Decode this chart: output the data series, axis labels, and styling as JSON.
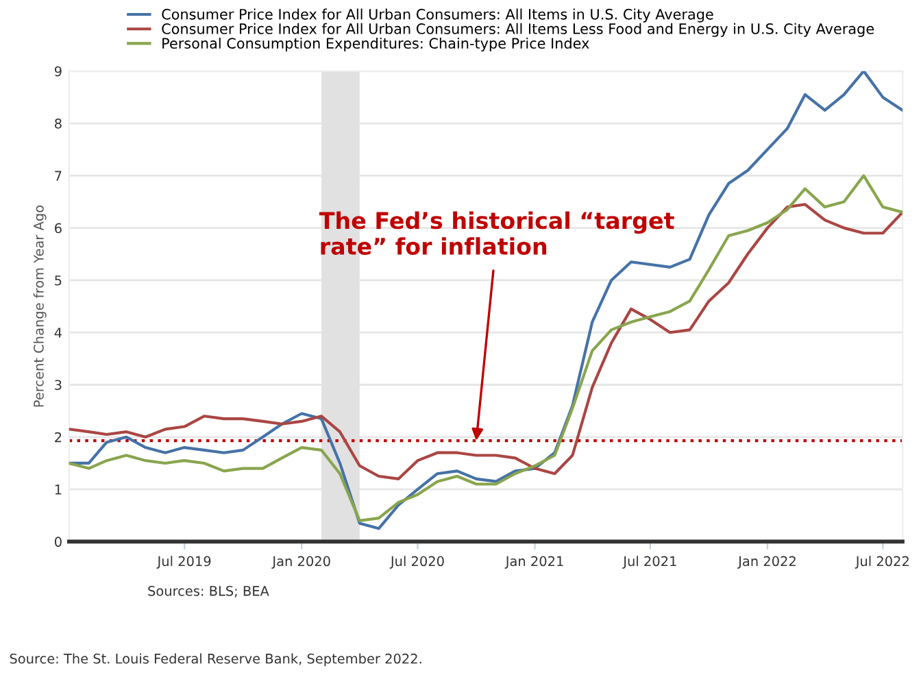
{
  "chart_data": {
    "type": "line",
    "ylabel": "Percent Change from Year Ago",
    "x": [
      "2019-01",
      "2019-02",
      "2019-03",
      "2019-04",
      "2019-05",
      "2019-06",
      "2019-07",
      "2019-08",
      "2019-09",
      "2019-10",
      "2019-11",
      "2019-12",
      "2020-01",
      "2020-02",
      "2020-03",
      "2020-04",
      "2020-05",
      "2020-06",
      "2020-07",
      "2020-08",
      "2020-09",
      "2020-10",
      "2020-11",
      "2020-12",
      "2021-01",
      "2021-02",
      "2021-03",
      "2021-04",
      "2021-05",
      "2021-06",
      "2021-07",
      "2021-08",
      "2021-09",
      "2021-10",
      "2021-11",
      "2021-12",
      "2022-01",
      "2022-02",
      "2022-03",
      "2022-04",
      "2022-05",
      "2022-06",
      "2022-07",
      "2022-08"
    ],
    "series": [
      {
        "name": "Consumer Price Index for All Urban Consumers: All Items in U.S. City Average",
        "color": "#4572a7",
        "values": [
          1.5,
          1.5,
          1.9,
          2.0,
          1.8,
          1.7,
          1.8,
          1.75,
          1.7,
          1.75,
          2.0,
          2.25,
          2.45,
          2.35,
          1.5,
          0.35,
          0.25,
          0.7,
          1.0,
          1.3,
          1.35,
          1.2,
          1.15,
          1.35,
          1.4,
          1.7,
          2.6,
          4.2,
          5.0,
          5.35,
          5.3,
          5.25,
          5.4,
          6.25,
          6.85,
          7.1,
          7.5,
          7.9,
          8.55,
          8.25,
          8.55,
          9.0,
          8.5,
          8.25
        ]
      },
      {
        "name": "Consumer Price Index for All Urban Consumers: All Items Less Food and Energy in U.S. City Average",
        "color": "#aa4643",
        "values": [
          2.15,
          2.1,
          2.05,
          2.1,
          2.0,
          2.15,
          2.2,
          2.4,
          2.35,
          2.35,
          2.3,
          2.25,
          2.3,
          2.4,
          2.1,
          1.45,
          1.25,
          1.2,
          1.55,
          1.7,
          1.7,
          1.65,
          1.65,
          1.6,
          1.4,
          1.3,
          1.65,
          2.95,
          3.8,
          4.45,
          4.25,
          4.0,
          4.05,
          4.6,
          4.95,
          5.5,
          6.0,
          6.4,
          6.45,
          6.15,
          6.0,
          5.9,
          5.9,
          6.3
        ]
      },
      {
        "name": "Personal Consumption Expenditures: Chain-type Price Index",
        "color": "#89a54e",
        "values": [
          1.5,
          1.4,
          1.55,
          1.65,
          1.55,
          1.5,
          1.55,
          1.5,
          1.35,
          1.4,
          1.4,
          1.6,
          1.8,
          1.75,
          1.3,
          0.4,
          0.45,
          0.75,
          0.9,
          1.15,
          1.25,
          1.1,
          1.1,
          1.3,
          1.45,
          1.65,
          2.55,
          3.65,
          4.05,
          4.2,
          4.3,
          4.4,
          4.6,
          5.2,
          5.85,
          5.95,
          6.1,
          6.35,
          6.75,
          6.4,
          6.5,
          7.0,
          6.4,
          6.3
        ]
      }
    ],
    "xlim": [
      "2019-01",
      "2022-08"
    ],
    "xticks": [
      {
        "value": "2019-07",
        "label": "Jul 2019"
      },
      {
        "value": "2020-01",
        "label": "Jan 2020"
      },
      {
        "value": "2020-07",
        "label": "Jul 2020"
      },
      {
        "value": "2021-01",
        "label": "Jan 2021"
      },
      {
        "value": "2021-07",
        "label": "Jul 2021"
      },
      {
        "value": "2022-01",
        "label": "Jan 2022"
      },
      {
        "value": "2022-07",
        "label": "Jul 2022"
      }
    ],
    "ylim": [
      0,
      9
    ],
    "yticks": [
      0,
      1,
      2,
      3,
      4,
      5,
      6,
      7,
      8,
      9
    ],
    "grid": "y",
    "legend": "top left",
    "marker": "none",
    "line_style": "solid",
    "bands": [
      {
        "axis": "x",
        "from": "2020-02",
        "to": "2020-04",
        "color": "#e1e1e1"
      }
    ],
    "ref_lines": [
      {
        "axis": "y",
        "value": 1.93,
        "color": "#c00000",
        "line_style": "dotted"
      }
    ],
    "annotations": [
      {
        "text": "The Fed’s historical “target rate” for inflation",
        "x": "2020-10",
        "y": 1.93
      },
      "Sources: BLS; BEA",
      "Source: The St. Louis Federal Reserve Bank, September 2022."
    ]
  }
}
